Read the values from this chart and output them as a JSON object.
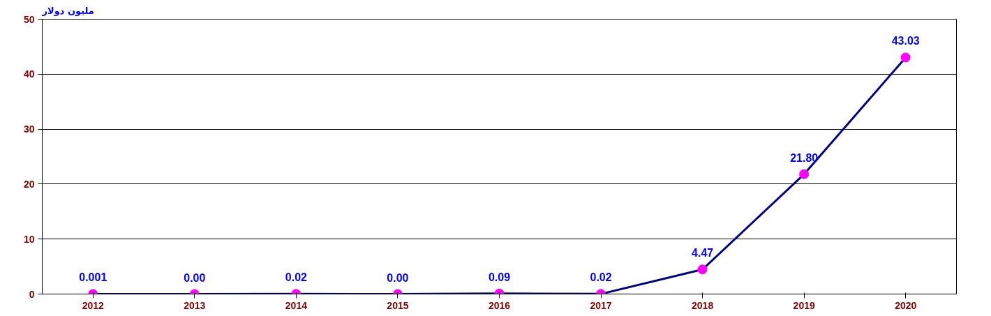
{
  "chart_data": {
    "type": "line",
    "ylabel": "مليون دولار",
    "categories": [
      "2012",
      "2013",
      "2014",
      "2015",
      "2016",
      "2017",
      "2018",
      "2019",
      "2020"
    ],
    "series": [
      {
        "color": "#000080",
        "values": [
          0.001,
          0,
          0.02,
          0,
          0.09,
          0.02,
          4.47,
          21.8,
          43.03
        ],
        "value_labels": [
          "0.001",
          "0.00",
          "0.02",
          "0.00",
          "0.09",
          "0.02",
          "4.47",
          "21.80",
          "43.03"
        ]
      }
    ],
    "ylim": [
      0,
      50
    ],
    "yticks": [
      0,
      10,
      20,
      30,
      40,
      50
    ],
    "grid": "y",
    "marker": "circle",
    "line_style": "solid"
  }
}
